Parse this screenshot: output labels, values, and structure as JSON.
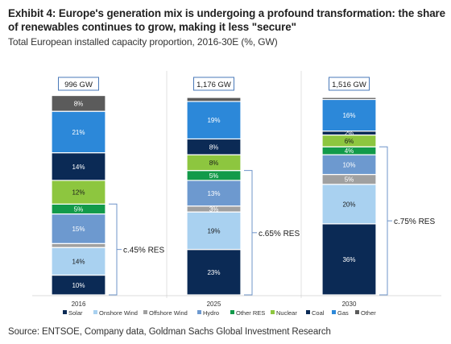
{
  "title": "Exhibit 4: Europe's generation mix is undergoing a profound transformation: the share of renewables continues to grow, making it less \"secure\"",
  "subtitle": "Total European installed capacity proportion, 2016-30E (%, GW)",
  "source": "Source: ENTSOE, Company data, Goldman Sachs Global Investment Research",
  "chart_data": {
    "type": "bar",
    "stacked": true,
    "categories": [
      "2016",
      "2025",
      "2030"
    ],
    "totals": [
      "996 GW",
      "1,176 GW",
      "1,516 GW"
    ],
    "series": [
      {
        "name": "Solar",
        "color": "#0b2a55",
        "values": [
          10,
          23,
          36
        ],
        "labels": [
          "10%",
          "23%",
          "36%"
        ],
        "label_color": "#ffffff"
      },
      {
        "name": "Onshore Wind",
        "color": "#a9d1f0",
        "values": [
          14,
          19,
          20
        ],
        "labels": [
          "14%",
          "19%",
          "20%"
        ],
        "label_color": "#1a1a1a"
      },
      {
        "name": "Offshore Wind",
        "color": "#a0a0a0",
        "values": [
          2,
          3,
          5
        ],
        "labels": [
          "",
          "3%",
          "5%"
        ],
        "label_color": "#ffffff"
      },
      {
        "name": "Hydro",
        "color": "#6d99cf",
        "values": [
          15,
          13,
          10
        ],
        "labels": [
          "15%",
          "13%",
          "10%"
        ],
        "label_color": "#ffffff"
      },
      {
        "name": "Other RES",
        "color": "#129a4a",
        "values": [
          5,
          5,
          4
        ],
        "labels": [
          "5%",
          "5%",
          "4%"
        ],
        "label_color": "#ffffff"
      },
      {
        "name": "Nuclear",
        "color": "#8dc63f",
        "values": [
          12,
          8,
          6
        ],
        "labels": [
          "12%",
          "8%",
          "6%"
        ],
        "label_color": "#1a1a1a"
      },
      {
        "name": "Coal",
        "color": "#0b2a55",
        "values": [
          14,
          8,
          2
        ],
        "labels": [
          "14%",
          "8%",
          "2%"
        ],
        "label_color": "#ffffff"
      },
      {
        "name": "Gas",
        "color": "#2c88d9",
        "values": [
          21,
          19,
          16
        ],
        "labels": [
          "21%",
          "19%",
          "16%"
        ],
        "label_color": "#ffffff"
      },
      {
        "name": "Other",
        "color": "#5b5b5b",
        "values": [
          8,
          2,
          1
        ],
        "labels": [
          "8%",
          "",
          ""
        ],
        "label_color": "#ffffff"
      }
    ],
    "annotations": [
      {
        "bar": "2016",
        "text": "c.45% RES",
        "from_series": "Solar",
        "to_series": "Other RES"
      },
      {
        "bar": "2025",
        "text": "c.65% RES",
        "from_series": "Solar",
        "to_series": "Other RES"
      },
      {
        "bar": "2030",
        "text": "c.75% RES",
        "from_series": "Solar",
        "to_series": "Other RES"
      }
    ],
    "ylim": [
      0,
      100
    ],
    "grid": false,
    "legend_position": "bottom"
  }
}
